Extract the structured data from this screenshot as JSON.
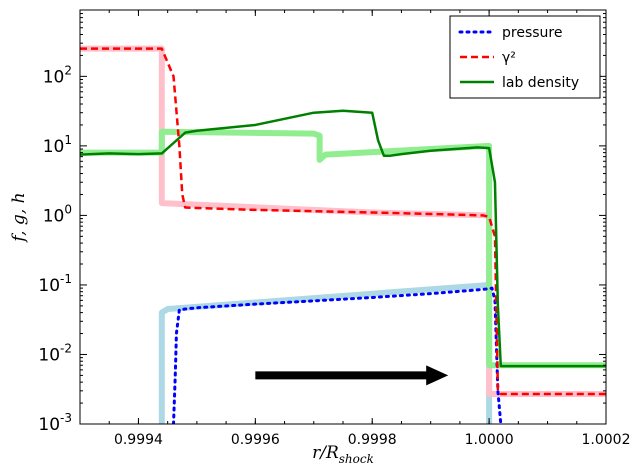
{
  "chart_data": {
    "type": "line",
    "xlabel": "r/R_shock",
    "ylabel": "f, g, h",
    "xlim": [
      0.9993,
      1.0002
    ],
    "ylim": [
      0.001,
      900
    ],
    "yscale": "log",
    "x_ticks": [
      "0.9994",
      "0.9996",
      "0.9998",
      "1.0000",
      "1.0002"
    ],
    "x_tick_values": [
      0.9994,
      0.9996,
      0.9998,
      1.0,
      1.0002
    ],
    "y_ticks": [
      "10^-3",
      "10^-2",
      "10^-1",
      "10^0",
      "10^1",
      "10^2"
    ],
    "y_tick_values": [
      0.001,
      0.01,
      0.1,
      1,
      10,
      100
    ],
    "legend_position": "upper-right",
    "series": [
      {
        "name": "pressure",
        "style": "dotted",
        "color": "#0000ff",
        "x": [
          0.99946,
          0.999463,
          0.999465,
          0.99947,
          0.99948,
          0.9995,
          0.9996,
          0.9997,
          0.9998,
          0.9999,
          0.99995,
          0.99998,
          1.0,
          1.000005,
          1.00001,
          1.000015,
          1.00002
        ],
        "y": [
          0.001,
          0.005,
          0.02,
          0.044,
          0.045,
          0.047,
          0.053,
          0.059,
          0.066,
          0.075,
          0.081,
          0.085,
          0.088,
          0.09,
          0.06,
          0.003,
          0.001
        ]
      },
      {
        "name": "γ²",
        "style": "dashed",
        "color": "#ff0000",
        "x": [
          0.9993,
          0.9994,
          0.99944,
          0.99946,
          0.99947,
          0.999475,
          0.99948,
          0.9995,
          0.9996,
          0.9997,
          0.9998,
          0.9999,
          0.99999,
          1.0,
          1.00001,
          1.000015,
          1.00002,
          1.0002
        ],
        "y": [
          250,
          250,
          250,
          100,
          10,
          2,
          1.3,
          1.28,
          1.2,
          1.15,
          1.1,
          1.05,
          1.0,
          0.95,
          0.5,
          0.003,
          0.0027,
          0.0027
        ]
      },
      {
        "name": "lab density",
        "style": "solid",
        "color": "#008000",
        "x": [
          0.9993,
          0.9993,
          0.99935,
          0.9994,
          0.99944,
          0.99946,
          0.99948,
          0.9995,
          0.9996,
          0.9997,
          0.99975,
          0.9998,
          0.99981,
          0.99982,
          0.99983,
          0.99985,
          0.9999,
          0.99998,
          1.0,
          1.00001,
          1.000015,
          1.00002,
          1.0002
        ],
        "y": [
          7.5,
          7.5,
          7.8,
          7.6,
          7.8,
          11,
          15.5,
          16.5,
          20,
          30,
          32,
          30,
          12,
          7.2,
          7.2,
          7.6,
          8.5,
          9.5,
          9.3,
          3,
          0.05,
          0.0068,
          0.0068
        ]
      }
    ],
    "analytic_curves": [
      {
        "name": "pressure-analytic",
        "color": "#add8e6",
        "x": [
          0.99944,
          0.99944,
          0.99945,
          1.0,
          1.0,
          1.0,
          1.0,
          1.000005
        ],
        "y": [
          0.001,
          0.04,
          0.045,
          0.1,
          0.05,
          0.01,
          0.001,
          0.001
        ]
      },
      {
        "name": "gamma-analytic",
        "color": "#ffc0cb",
        "x": [
          0.9993,
          0.99944,
          0.99944,
          0.9998,
          1.0,
          1.0,
          1.0002
        ],
        "y": [
          250,
          250,
          1.5,
          1.1,
          1.0,
          0.0027,
          0.0027
        ]
      },
      {
        "name": "density-analytic",
        "color": "#90ee90",
        "x": [
          0.9993,
          0.99944,
          0.99944,
          0.9997,
          0.99971,
          0.99971,
          0.99972,
          1.0,
          1.0,
          1.0,
          1.0002
        ],
        "y": [
          8.0,
          8.0,
          16,
          15,
          14,
          6.3,
          7.5,
          10,
          1.0,
          0.007,
          0.007
        ]
      }
    ],
    "arrow": {
      "x_start": 0.9996,
      "x_end": 0.99993,
      "y": 0.005,
      "color": "#000000"
    },
    "legend": [
      {
        "label": "pressure",
        "color": "#0000ff",
        "style": "dotted"
      },
      {
        "label": "γ²",
        "color": "#ff0000",
        "style": "dashed"
      },
      {
        "label": "lab density",
        "color": "#008000",
        "style": "solid"
      }
    ]
  }
}
